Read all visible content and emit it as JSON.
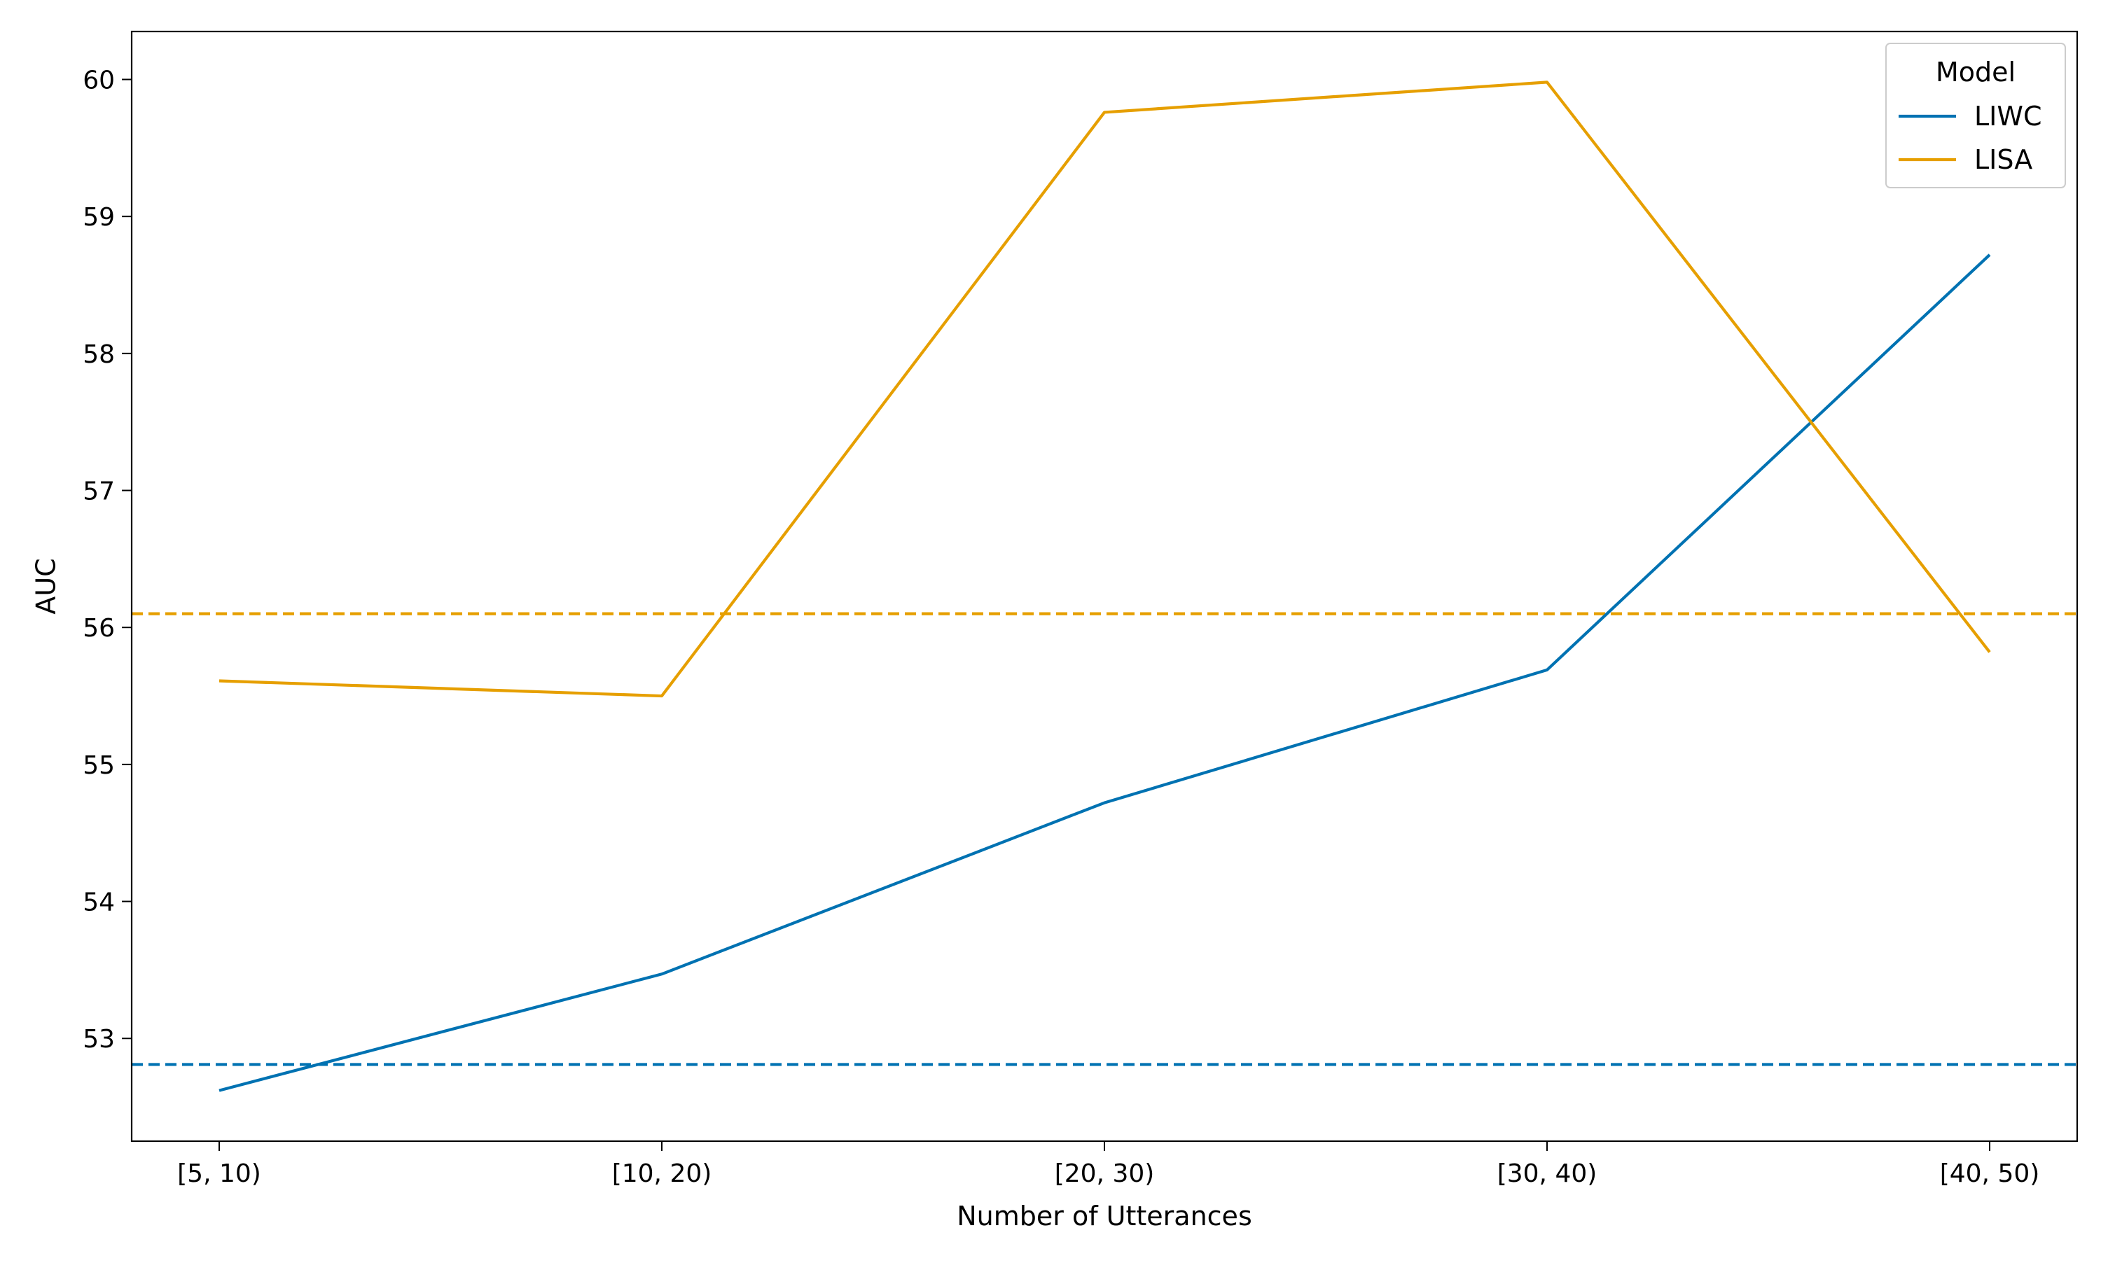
{
  "chart_data": {
    "type": "line",
    "title": "",
    "xlabel": "Number of Utterances",
    "ylabel": "AUC",
    "categories": [
      "[5, 10)",
      "[10, 20)",
      "[20, 30)",
      "[30, 40)",
      "[40, 50)"
    ],
    "ylim": [
      52.25,
      60.35
    ],
    "yticks": [
      53,
      54,
      55,
      56,
      57,
      58,
      59,
      60
    ],
    "grid": false,
    "legend": {
      "title": "Model",
      "placement": "top-right"
    },
    "series": [
      {
        "name": "LIWC",
        "color": "#0072B2",
        "values": [
          52.62,
          53.47,
          54.72,
          55.69,
          58.72
        ]
      },
      {
        "name": "LISA",
        "color": "#E69F00",
        "values": [
          55.61,
          55.5,
          59.76,
          59.98,
          55.82
        ]
      }
    ],
    "reference_lines": [
      {
        "series": "LIWC",
        "color": "#0072B2",
        "value": 52.81,
        "style": "dashed"
      },
      {
        "series": "LISA",
        "color": "#E69F00",
        "value": 56.1,
        "style": "dashed"
      }
    ]
  }
}
